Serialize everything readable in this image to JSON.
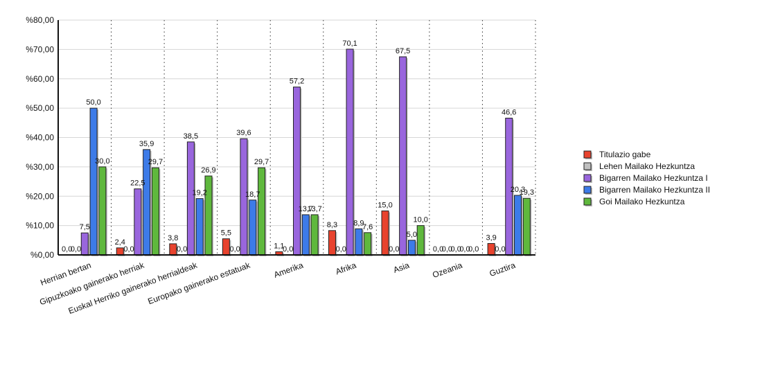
{
  "chart_data": {
    "type": "bar",
    "categories": [
      "Herrian bertan",
      "Gipuzkoako gainerako herriak",
      "Euskal Herriko gainerako herrialdeak",
      "Europako gainerako estatuak",
      "Amerika",
      "Afrika",
      "Asia",
      "Ozeania",
      "Guztira"
    ],
    "series": [
      {
        "name": "Titulazio gabe",
        "color": "#e8432e",
        "values": [
          0.0,
          2.4,
          3.8,
          5.5,
          1.1,
          8.3,
          15.0,
          0.0,
          3.9
        ],
        "labels": [
          "0,0",
          "2,4",
          "3,8",
          "5,5",
          "1,1",
          "8,3",
          "15,0",
          "0,0",
          "3,9"
        ]
      },
      {
        "name": "Lehen Mailako Hezkuntza",
        "color": "#c0c0c0",
        "values": [
          0.0,
          0.0,
          0.0,
          0.0,
          0.0,
          0.0,
          0.0,
          0.0,
          0.0
        ],
        "labels": [
          "0,0",
          "0,0",
          "0,0",
          "0,0",
          "0,0",
          "0,0",
          "0,0",
          "0,0",
          "0,0"
        ]
      },
      {
        "name": "Bigarren Mailako Hezkuntza I",
        "color": "#9966dd",
        "values": [
          7.5,
          22.5,
          38.5,
          39.6,
          57.2,
          70.1,
          67.5,
          0.0,
          46.6
        ],
        "labels": [
          "7,5",
          "22,5",
          "38,5",
          "39,6",
          "57,2",
          "70,1",
          "67,5",
          "0,0",
          "46,6"
        ]
      },
      {
        "name": "Bigarren Mailako Hezkuntza II",
        "color": "#3d7be8",
        "values": [
          50.0,
          35.9,
          19.2,
          18.7,
          13.7,
          8.9,
          5.0,
          0.0,
          20.3
        ],
        "labels": [
          "50,0",
          "35,9",
          "19,2",
          "18,7",
          "13,7",
          "8,9",
          "5,0",
          "0,0",
          "20,3"
        ]
      },
      {
        "name": "Goi Mailako Hezkuntza",
        "color": "#5fb83d",
        "values": [
          30.0,
          29.7,
          26.9,
          29.7,
          13.7,
          7.6,
          10.0,
          0.0,
          19.3
        ],
        "labels": [
          "30,0",
          "29,7",
          "26,9",
          "29,7",
          "13,7",
          "7,6",
          "10,0",
          "0,0",
          "19,3"
        ]
      }
    ],
    "ylim": [
      0,
      80
    ],
    "yticks": [
      0,
      10,
      20,
      30,
      40,
      50,
      60,
      70,
      80
    ],
    "ytick_labels": [
      "%0,00",
      "%10,00",
      "%20,00",
      "%30,00",
      "%40,00",
      "%50,00",
      "%60,00",
      "%70,00",
      "%80,00"
    ],
    "grid": true,
    "legend_position": "right"
  }
}
